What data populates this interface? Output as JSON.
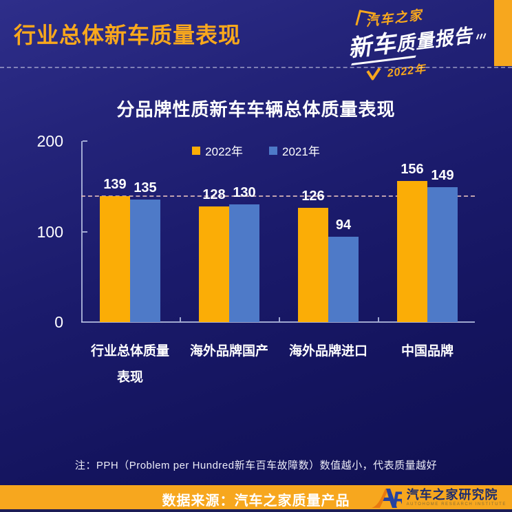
{
  "header": {
    "title": "行业总体新车质量表现",
    "logo": {
      "brand": "汽车之家",
      "report_main": "新车",
      "report_rest": "质量报告",
      "year": "2022年"
    }
  },
  "chart_data": {
    "type": "bar",
    "title": "分品牌性质新车车辆总体质量表现",
    "categories": [
      "行业总体质量表现",
      "海外品牌国产",
      "海外品牌进口",
      "中国品牌"
    ],
    "category_lines": [
      [
        "行业总体质量",
        "表现"
      ],
      [
        "海外品牌国产"
      ],
      [
        "海外品牌进口"
      ],
      [
        "中国品牌"
      ]
    ],
    "series": [
      {
        "name": "2022年",
        "color": "#FBAD06",
        "values": [
          139,
          128,
          126,
          156
        ]
      },
      {
        "name": "2021年",
        "color": "#4E7AC8",
        "values": [
          135,
          130,
          94,
          149
        ]
      }
    ],
    "xlabel": "",
    "ylabel": "",
    "ylim": [
      0,
      200
    ],
    "yticks": [
      0,
      100,
      200
    ],
    "reference_line": 139,
    "legend_position": "top-center",
    "grid": false
  },
  "note": "注：PPH（Problem per Hundred新车百车故障数）数值越小，代表质量越好",
  "footer": {
    "source": "数据来源：汽车之家质量产品",
    "org_abbr": "AR",
    "org_cn": "汽车之家研究院",
    "org_en": "AUTOHOME RESEARCH INSTITUTE"
  },
  "colors": {
    "accent_orange": "#F7A71E",
    "bar_2022": "#FBAD06",
    "bar_2021": "#4E7AC8",
    "title_orange": "#F9A81C",
    "background_top": "#2E2E8A",
    "background_bottom": "#0F0F50",
    "footer_logo_blue": "#2442A0"
  }
}
